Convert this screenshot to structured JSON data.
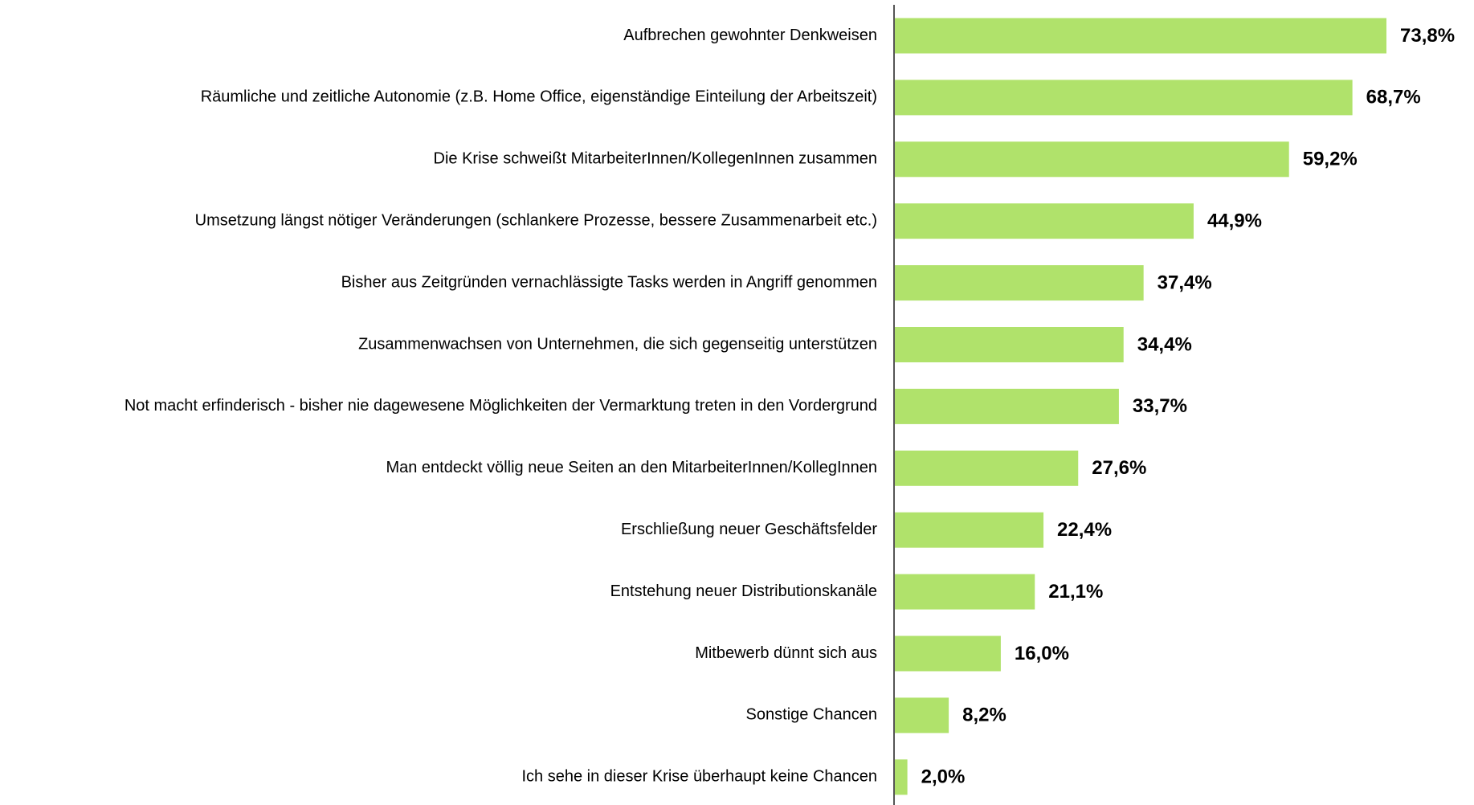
{
  "chart_data": {
    "type": "barh",
    "categories": [
      "Aufbrechen gewohnter Denkweisen",
      "Räumliche und zeitliche Autonomie (z.B. Home Office, eigenständige Einteilung der Arbeitszeit)",
      "Die Krise schweißt MitarbeiterInnen/KollegenInnen zusammen",
      "Umsetzung längst nötiger Veränderungen (schlankere Prozesse, bessere Zusammenarbeit etc.)",
      "Bisher aus Zeitgründen vernachlässigte Tasks werden in Angriff genommen",
      "Zusammenwachsen von Unternehmen, die sich gegenseitig unterstützen",
      "Not macht erfinderisch - bisher nie dagewesene Möglichkeiten der Vermarktung treten in den Vordergrund",
      "Man entdeckt völlig neue Seiten an den MitarbeiterInnen/KollegInnen",
      "Erschließung neuer Geschäftsfelder",
      "Entstehung neuer Distributionskanäle",
      "Mitbewerb dünnt sich aus",
      "Sonstige Chancen",
      "Ich sehe in dieser Krise überhaupt keine Chancen"
    ],
    "values": [
      73.8,
      68.7,
      59.2,
      44.9,
      37.4,
      34.4,
      33.7,
      27.6,
      22.4,
      21.1,
      16.0,
      8.2,
      2.0
    ],
    "value_labels": [
      "73,8%",
      "68,7%",
      "59,2%",
      "44,9%",
      "37,4%",
      "34,4%",
      "33,7%",
      "27,6%",
      "22,4%",
      "21,1%",
      "16,0%",
      "8,2%",
      "2,0%"
    ],
    "color": "#b0e26b"
  }
}
